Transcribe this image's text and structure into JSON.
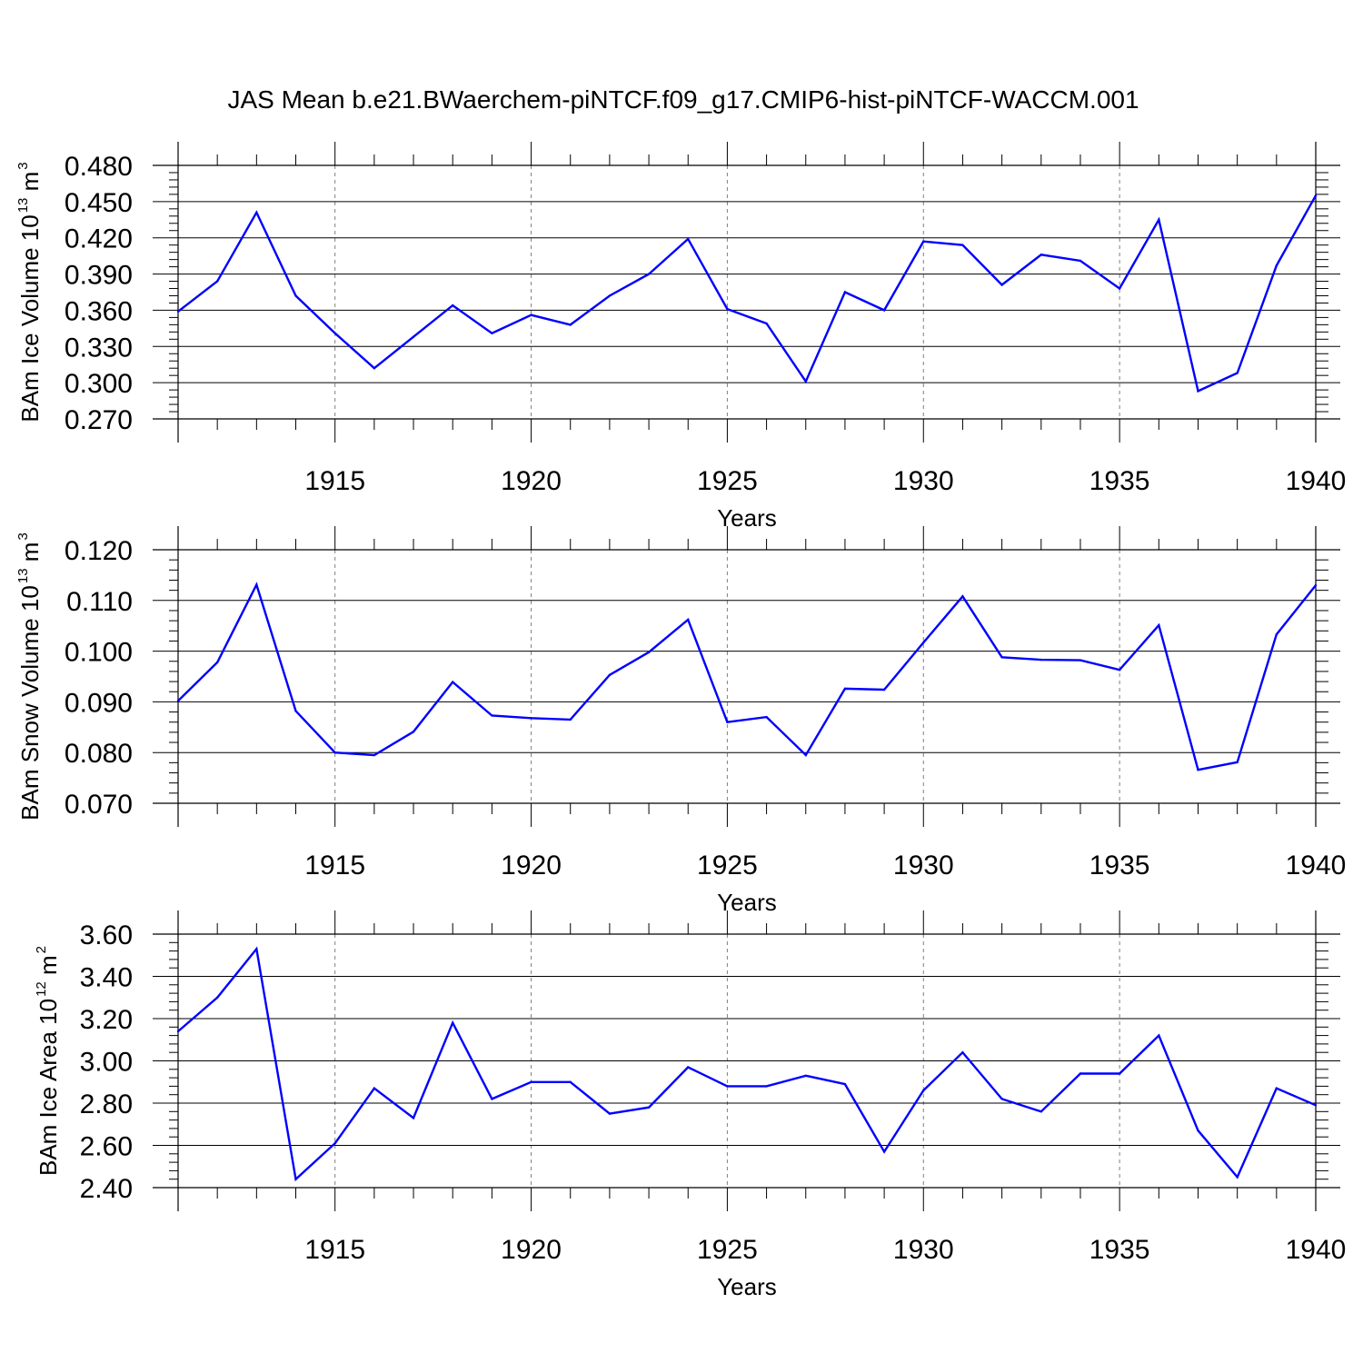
{
  "title": "JAS Mean b.e21.BWaerchem-piNTCF.f09_g17.CMIP6-hist-piNTCF-WACCM.001",
  "colors": {
    "line": "#0000ff",
    "axis": "#000000",
    "grid": "#808080"
  },
  "chart_data": [
    {
      "type": "line",
      "xlabel": "Years",
      "ylabel": {
        "text": "BAm Ice Volume 10",
        "exp": "13",
        "unit": " m",
        "unit_exp": "3"
      },
      "xlim": [
        1911,
        1940
      ],
      "ylim": [
        0.27,
        0.48
      ],
      "yticks": [
        0.27,
        0.3,
        0.33,
        0.36,
        0.39,
        0.42,
        0.45,
        0.48
      ],
      "ytick_labels": [
        "0.270",
        "0.300",
        "0.330",
        "0.360",
        "0.390",
        "0.420",
        "0.450",
        "0.480"
      ],
      "ytick_minor": 0.006,
      "xticks": [
        1915,
        1920,
        1925,
        1930,
        1935,
        1940
      ],
      "xtick_labels": [
        "1915",
        "1920",
        "1925",
        "1930",
        "1935",
        "1940"
      ],
      "grid": "vertical-dashed",
      "x": [
        1911,
        1912,
        1913,
        1914,
        1915,
        1916,
        1917,
        1918,
        1919,
        1920,
        1921,
        1922,
        1923,
        1924,
        1925,
        1926,
        1927,
        1928,
        1929,
        1930,
        1931,
        1932,
        1933,
        1934,
        1935,
        1936,
        1937,
        1938,
        1939,
        1940
      ],
      "values": [
        0.359,
        0.384,
        0.441,
        0.372,
        0.341,
        0.312,
        0.338,
        0.364,
        0.341,
        0.356,
        0.348,
        0.372,
        0.39,
        0.419,
        0.361,
        0.349,
        0.301,
        0.375,
        0.36,
        0.417,
        0.414,
        0.381,
        0.406,
        0.401,
        0.378,
        0.435,
        0.293,
        0.308,
        0.397,
        0.455
      ]
    },
    {
      "type": "line",
      "xlabel": "Years",
      "ylabel": {
        "text": "BAm Snow Volume 10",
        "exp": "13",
        "unit": " m",
        "unit_exp": "3"
      },
      "xlim": [
        1911,
        1940
      ],
      "ylim": [
        0.07,
        0.12
      ],
      "yticks": [
        0.07,
        0.08,
        0.09,
        0.1,
        0.11,
        0.12
      ],
      "ytick_labels": [
        "0.070",
        "0.080",
        "0.090",
        "0.100",
        "0.110",
        "0.120"
      ],
      "ytick_minor": 0.002,
      "xticks": [
        1915,
        1920,
        1925,
        1930,
        1935,
        1940
      ],
      "xtick_labels": [
        "1915",
        "1920",
        "1925",
        "1930",
        "1935",
        "1940"
      ],
      "grid": "vertical-dashed",
      "x": [
        1911,
        1912,
        1913,
        1914,
        1915,
        1916,
        1917,
        1918,
        1919,
        1920,
        1921,
        1922,
        1923,
        1924,
        1925,
        1926,
        1927,
        1928,
        1929,
        1930,
        1931,
        1932,
        1933,
        1934,
        1935,
        1936,
        1937,
        1938,
        1939,
        1940
      ],
      "values": [
        0.0902,
        0.0978,
        0.1131,
        0.0882,
        0.08,
        0.0795,
        0.0841,
        0.0939,
        0.0873,
        0.0868,
        0.0865,
        0.0953,
        0.0998,
        0.1062,
        0.086,
        0.087,
        0.0795,
        0.0926,
        0.0924,
        0.1017,
        0.1108,
        0.0988,
        0.0983,
        0.0982,
        0.0963,
        0.1051,
        0.0766,
        0.0781,
        0.1033,
        0.113
      ]
    },
    {
      "type": "line",
      "xlabel": "Years",
      "ylabel": {
        "text": "BAm Ice Area 10",
        "exp": "12",
        "unit": " m",
        "unit_exp": "2"
      },
      "xlim": [
        1911,
        1940
      ],
      "ylim": [
        2.4,
        3.6
      ],
      "yticks": [
        2.4,
        2.6,
        2.8,
        3.0,
        3.2,
        3.4,
        3.6
      ],
      "ytick_labels": [
        "2.40",
        "2.60",
        "2.80",
        "3.00",
        "3.20",
        "3.40",
        "3.60"
      ],
      "ytick_minor": 0.04,
      "xticks": [
        1915,
        1920,
        1925,
        1930,
        1935,
        1940
      ],
      "xtick_labels": [
        "1915",
        "1920",
        "1925",
        "1930",
        "1935",
        "1940"
      ],
      "grid": "vertical-dashed",
      "x": [
        1911,
        1912,
        1913,
        1914,
        1915,
        1916,
        1917,
        1918,
        1919,
        1920,
        1921,
        1922,
        1923,
        1924,
        1925,
        1926,
        1927,
        1928,
        1929,
        1930,
        1931,
        1932,
        1933,
        1934,
        1935,
        1936,
        1937,
        1938,
        1939,
        1940
      ],
      "values": [
        3.14,
        3.3,
        3.53,
        2.44,
        2.61,
        2.87,
        2.73,
        3.18,
        2.82,
        2.9,
        2.9,
        2.75,
        2.78,
        2.97,
        2.88,
        2.88,
        2.93,
        2.89,
        2.57,
        2.86,
        3.04,
        2.82,
        2.76,
        2.94,
        2.94,
        3.12,
        2.67,
        2.45,
        2.87,
        2.79
      ]
    }
  ]
}
